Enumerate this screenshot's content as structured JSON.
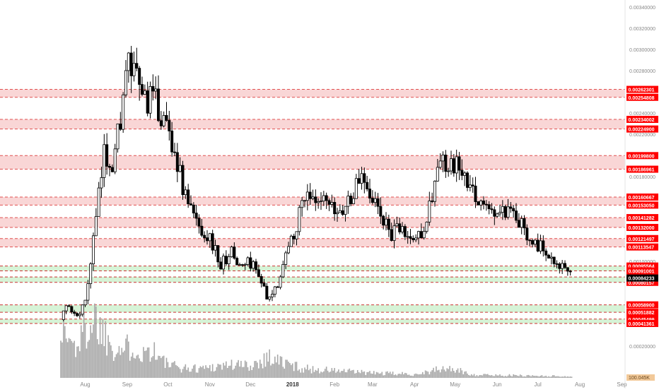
{
  "chart_data": {
    "type": "candlestick",
    "x_ticks": [
      "Aug",
      "Sep",
      "Oct",
      "Nov",
      "Dec",
      "2018",
      "Feb",
      "Mar",
      "Apr",
      "May",
      "Jun",
      "Jul",
      "Aug",
      "Sep"
    ],
    "y_ticks": [
      "0.00340000",
      "0.00320000",
      "0.00300000",
      "0.00280000",
      "0.00240000",
      "0.00220000",
      "0.00180000",
      "0.00100000",
      "0.00020000"
    ],
    "ylim": [
      0.0,
      0.0035
    ],
    "current_price": "0.00084233",
    "volume_label": "100.045K",
    "resistance_zones": [
      {
        "upper": 0.00262301,
        "lower": 0.00254808,
        "upper_label": "0.00262301",
        "lower_label": "0.00254808"
      },
      {
        "upper": 0.00234002,
        "lower": 0.002249,
        "upper_label": "0.00234002",
        "lower_label": "0.00224900"
      },
      {
        "upper": 0.001998,
        "lower": 0.00186961,
        "upper_label": "0.00199800",
        "lower_label": "0.00186961"
      },
      {
        "upper": 0.00160667,
        "lower": 0.0015305,
        "upper_label": "0.00160667",
        "lower_label": "0.00153050"
      },
      {
        "upper": 0.00141282,
        "lower": 0.00132,
        "upper_label": "0.00141282",
        "lower_label": "0.00132000"
      },
      {
        "upper": 0.00121497,
        "lower": 0.00113547,
        "upper_label": "0.00121497",
        "lower_label": "0.00113547"
      }
    ],
    "support_zones": [
      {
        "upper": 0.00095564,
        "lower": 0.00091001,
        "upper_label": "0.00095564",
        "lower_label": "0.00091001"
      },
      {
        "upper": 0.00085258,
        "lower": 0.00080157,
        "upper_label": "0.00085258",
        "lower_label": "0.00080157"
      },
      {
        "upper": 0.000589,
        "lower": 0.00051882,
        "upper_label": "0.00058900",
        "lower_label": "0.00051882"
      },
      {
        "upper": 0.00045499,
        "lower": 0.00041361,
        "upper_label": "0.00045499",
        "lower_label": "0.00041361"
      }
    ],
    "price_path": [
      [
        "2017-07-14",
        0.00045
      ],
      [
        "2017-07-18",
        0.00057
      ],
      [
        "2017-07-25",
        0.00048
      ],
      [
        "2017-08-01",
        0.0006
      ],
      [
        "2017-08-08",
        0.0013
      ],
      [
        "2017-08-15",
        0.002
      ],
      [
        "2017-08-22",
        0.00195
      ],
      [
        "2017-08-29",
        0.00255
      ],
      [
        "2017-09-02",
        0.00285
      ],
      [
        "2017-09-07",
        0.0027
      ],
      [
        "2017-09-14",
        0.00255
      ],
      [
        "2017-09-21",
        0.0025
      ],
      [
        "2017-09-28",
        0.00235
      ],
      [
        "2017-10-05",
        0.0021
      ],
      [
        "2017-10-12",
        0.0017
      ],
      [
        "2017-10-19",
        0.00145
      ],
      [
        "2017-10-26",
        0.0013
      ],
      [
        "2017-11-02",
        0.0012
      ],
      [
        "2017-11-09",
        0.00095
      ],
      [
        "2017-11-16",
        0.0011
      ],
      [
        "2017-11-23",
        0.00095
      ],
      [
        "2017-11-30",
        0.001
      ],
      [
        "2017-12-07",
        0.0009
      ],
      [
        "2017-12-14",
        0.0006
      ],
      [
        "2017-12-21",
        0.0008
      ],
      [
        "2017-12-28",
        0.0011
      ],
      [
        "2018-01-04",
        0.00135
      ],
      [
        "2018-01-11",
        0.0017
      ],
      [
        "2018-01-18",
        0.0015
      ],
      [
        "2018-01-25",
        0.00155
      ],
      [
        "2018-02-01",
        0.00145
      ],
      [
        "2018-02-08",
        0.0015
      ],
      [
        "2018-02-15",
        0.00165
      ],
      [
        "2018-02-22",
        0.00185
      ],
      [
        "2018-03-01",
        0.0016
      ],
      [
        "2018-03-08",
        0.0014
      ],
      [
        "2018-03-15",
        0.00125
      ],
      [
        "2018-03-22",
        0.0013
      ],
      [
        "2018-03-29",
        0.0012
      ],
      [
        "2018-04-05",
        0.00125
      ],
      [
        "2018-04-12",
        0.0015
      ],
      [
        "2018-04-19",
        0.00195
      ],
      [
        "2018-04-26",
        0.00185
      ],
      [
        "2018-05-03",
        0.0019
      ],
      [
        "2018-05-10",
        0.0017
      ],
      [
        "2018-05-17",
        0.0016
      ],
      [
        "2018-05-24",
        0.0015
      ],
      [
        "2018-05-31",
        0.00145
      ],
      [
        "2018-06-07",
        0.00145
      ],
      [
        "2018-06-14",
        0.0014
      ],
      [
        "2018-06-21",
        0.0013
      ],
      [
        "2018-06-28",
        0.0012
      ],
      [
        "2018-07-05",
        0.0011
      ],
      [
        "2018-07-12",
        0.00105
      ],
      [
        "2018-07-19",
        0.00095
      ],
      [
        "2018-07-26",
        0.00084
      ]
    ],
    "volume_profile": [
      [
        "2017-07-14",
        0.9
      ],
      [
        "2017-07-18",
        0.7
      ],
      [
        "2017-07-25",
        0.5
      ],
      [
        "2017-08-01",
        0.8
      ],
      [
        "2017-08-08",
        1.0
      ],
      [
        "2017-08-15",
        0.75
      ],
      [
        "2017-08-22",
        0.55
      ],
      [
        "2017-08-29",
        0.45
      ],
      [
        "2017-09-05",
        0.55
      ],
      [
        "2017-09-12",
        0.4
      ],
      [
        "2017-09-19",
        0.5
      ],
      [
        "2017-09-26",
        0.3
      ],
      [
        "2017-10-03",
        0.2
      ],
      [
        "2017-10-17",
        0.15
      ],
      [
        "2017-11-01",
        0.18
      ],
      [
        "2017-11-15",
        0.22
      ],
      [
        "2017-12-01",
        0.2
      ],
      [
        "2017-12-10",
        0.3
      ],
      [
        "2017-12-15",
        0.35
      ],
      [
        "2017-12-25",
        0.25
      ],
      [
        "2018-01-10",
        0.15
      ],
      [
        "2018-02-01",
        0.12
      ],
      [
        "2018-03-01",
        0.08
      ],
      [
        "2018-04-01",
        0.06
      ],
      [
        "2018-04-20",
        0.14
      ],
      [
        "2018-04-28",
        0.15
      ],
      [
        "2018-05-15",
        0.05
      ],
      [
        "2018-06-15",
        0.04
      ],
      [
        "2018-07-15",
        0.03
      ],
      [
        "2018-07-26",
        0.02
      ]
    ]
  },
  "colors": {
    "resistance_fill": "#f9d6d6",
    "resistance_line": "#e05050",
    "support_fill": "#d6f3d6",
    "support_line": "#cc3333",
    "badge_bg": "#ff0000",
    "badge_text": "#ffffff",
    "current_badge_bg": "#000000",
    "candle": "#000000",
    "volume": "#a8a8a8",
    "axis_text": "#888888"
  }
}
